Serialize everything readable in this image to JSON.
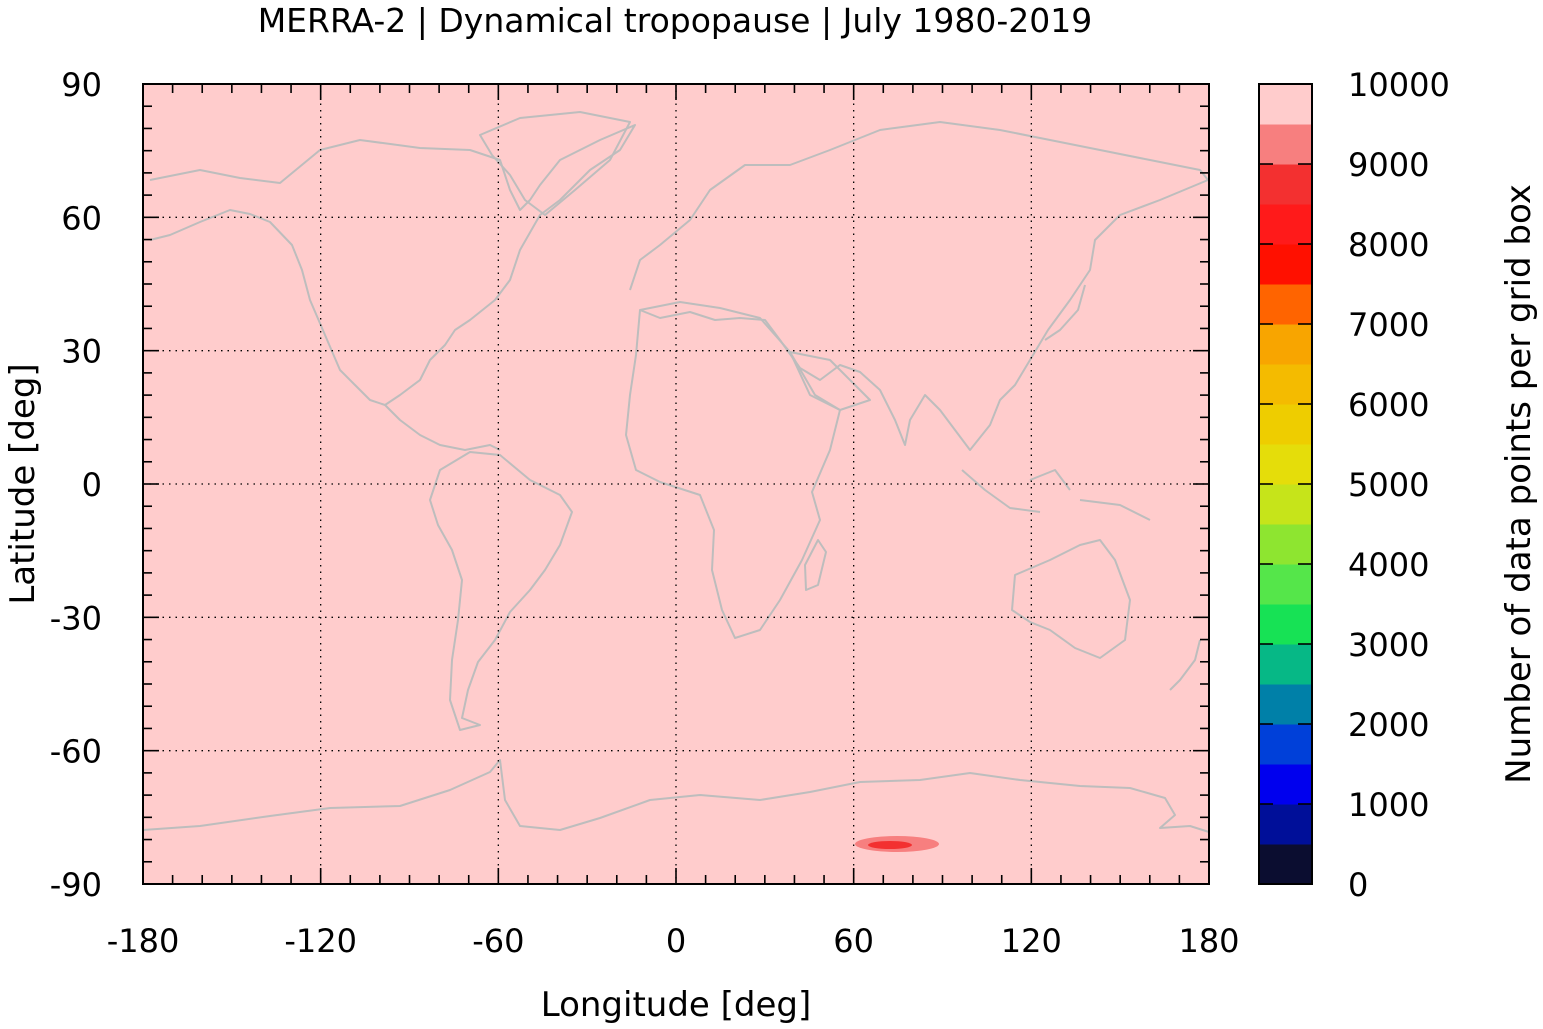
{
  "title": "MERRA-2 | Dynamical tropopause | July 1980-2019",
  "colors": {
    "background_field": "#ffcccc",
    "coastline": "#bdbdbd",
    "frame": "#000000"
  },
  "chart_data": {
    "type": "heatmap",
    "title": "MERRA-2 | Dynamical tropopause | July 1980-2019",
    "xlabel": "Longitude [deg]",
    "ylabel": "Latitude [deg]",
    "xlim": [
      -180,
      180
    ],
    "ylim": [
      -90,
      90
    ],
    "grid": true,
    "x_ticks": [
      "-180",
      "-120",
      "-60",
      "0",
      "60",
      "120",
      "180"
    ],
    "y_ticks": [
      "90",
      "60",
      "30",
      "0",
      "-30",
      "-60",
      "-90"
    ],
    "field_value": 10000,
    "anomaly": {
      "lon": 72,
      "lat": -81,
      "value_outer": 9250,
      "value_inner": 8750
    },
    "colorbar": {
      "label": "Number of data points per grid box",
      "min": 0,
      "max": 10000,
      "tick_labels": [
        "0",
        "1000",
        "2000",
        "3000",
        "4000",
        "5000",
        "6000",
        "7000",
        "8000",
        "9000",
        "10000"
      ],
      "levels": [
        "#0b0d30",
        "#000f99",
        "#0000ee",
        "#0040d9",
        "#0080a8",
        "#06b886",
        "#17e255",
        "#55e64a",
        "#8ee530",
        "#c6e41a",
        "#e5dd0a",
        "#eecd00",
        "#f4bb00",
        "#f8a500",
        "#ff6400",
        "#ff1000",
        "#ff1a1a",
        "#f33030",
        "#f77f7f",
        "#ffcccc"
      ]
    }
  }
}
